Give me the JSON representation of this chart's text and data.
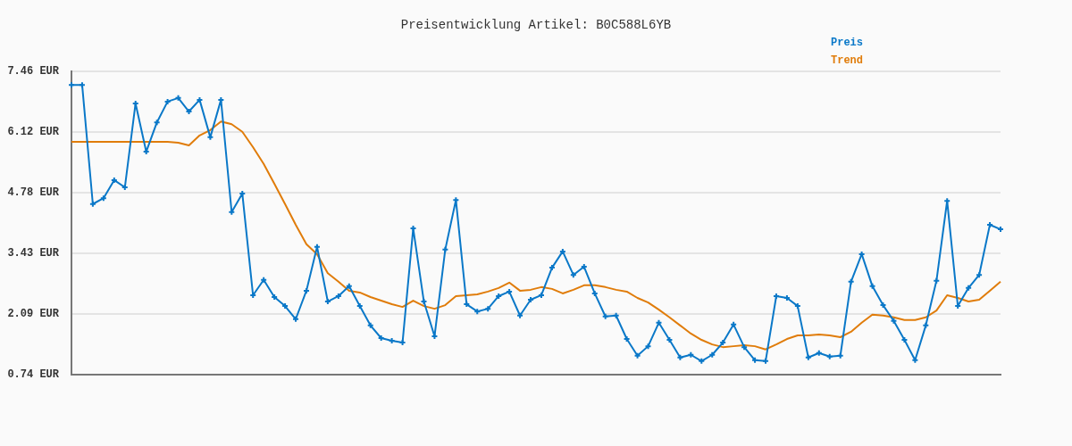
{
  "chart_data": {
    "type": "line",
    "title": "Preisentwicklung Artikel: B0C588L6YB",
    "categories": [
      null,
      null,
      null,
      null,
      null,
      null,
      null,
      null,
      null,
      null,
      null,
      null,
      null,
      null,
      null,
      null,
      null,
      null,
      null,
      null,
      null,
      null,
      null,
      null,
      null,
      null,
      null,
      null,
      null,
      null,
      null,
      null,
      null,
      null,
      null,
      null,
      null,
      null,
      null,
      null,
      null,
      null,
      null,
      null,
      null,
      null,
      null,
      null,
      null,
      null,
      null,
      null,
      null,
      null,
      null,
      null,
      null,
      null,
      null,
      null,
      null,
      null,
      null,
      null,
      null,
      null,
      null,
      null,
      null,
      null,
      null,
      null,
      null,
      null,
      null,
      null,
      null,
      null,
      null,
      null,
      null,
      null,
      null,
      null,
      null,
      null,
      null,
      null
    ],
    "series": [
      {
        "name": "Preis",
        "color": "#0a78c8",
        "marker": "cross",
        "values": [
          7.16,
          7.16,
          4.52,
          4.65,
          5.05,
          4.89,
          6.75,
          5.68,
          6.33,
          6.79,
          6.87,
          6.57,
          6.83,
          6.0,
          6.83,
          4.34,
          4.75,
          2.5,
          2.84,
          2.46,
          2.26,
          1.97,
          2.6,
          3.57,
          2.36,
          2.48,
          2.7,
          2.26,
          1.83,
          1.55,
          1.49,
          1.45,
          3.98,
          2.36,
          1.59,
          3.51,
          4.61,
          2.3,
          2.14,
          2.2,
          2.48,
          2.58,
          2.05,
          2.4,
          2.5,
          3.11,
          3.47,
          2.95,
          3.13,
          2.54,
          2.03,
          2.05,
          1.53,
          1.16,
          1.37,
          1.89,
          1.51,
          1.12,
          1.18,
          1.04,
          1.18,
          1.45,
          1.85,
          1.35,
          1.06,
          1.04,
          2.48,
          2.44,
          2.26,
          1.12,
          1.22,
          1.14,
          1.16,
          2.8,
          3.41,
          2.7,
          2.28,
          1.93,
          1.51,
          1.06,
          1.83,
          2.82,
          4.59,
          2.26,
          2.66,
          2.95,
          4.06,
          3.96
        ]
      },
      {
        "name": "Trend",
        "color": "#e07c0a",
        "marker": "none",
        "values": [
          5.9,
          5.9,
          5.9,
          5.9,
          5.9,
          5.9,
          5.9,
          5.9,
          5.9,
          5.9,
          5.88,
          5.82,
          6.04,
          6.16,
          6.35,
          6.29,
          6.12,
          5.78,
          5.41,
          4.97,
          4.52,
          4.06,
          3.63,
          3.41,
          2.99,
          2.8,
          2.6,
          2.56,
          2.46,
          2.38,
          2.3,
          2.24,
          2.38,
          2.26,
          2.2,
          2.28,
          2.48,
          2.5,
          2.52,
          2.58,
          2.66,
          2.78,
          2.6,
          2.62,
          2.68,
          2.64,
          2.54,
          2.62,
          2.72,
          2.72,
          2.68,
          2.62,
          2.58,
          2.44,
          2.34,
          2.18,
          2.01,
          1.83,
          1.65,
          1.51,
          1.41,
          1.35,
          1.37,
          1.39,
          1.37,
          1.3,
          1.41,
          1.53,
          1.61,
          1.61,
          1.63,
          1.61,
          1.57,
          1.69,
          1.89,
          2.07,
          2.05,
          2.01,
          1.95,
          1.95,
          2.01,
          2.16,
          2.5,
          2.44,
          2.36,
          2.4,
          2.6,
          2.8
        ]
      }
    ],
    "ylim": [
      0.74,
      7.46
    ],
    "yticks": [
      {
        "value": 0.74,
        "label": "0.74 EUR"
      },
      {
        "value": 2.09,
        "label": "2.09 EUR"
      },
      {
        "value": 3.43,
        "label": "3.43 EUR"
      },
      {
        "value": 4.78,
        "label": "4.78 EUR"
      },
      {
        "value": 6.12,
        "label": "6.12 EUR"
      },
      {
        "value": 7.46,
        "label": "7.46 EUR"
      }
    ],
    "grid": "y",
    "legend": "top right",
    "line_style": "solid"
  }
}
